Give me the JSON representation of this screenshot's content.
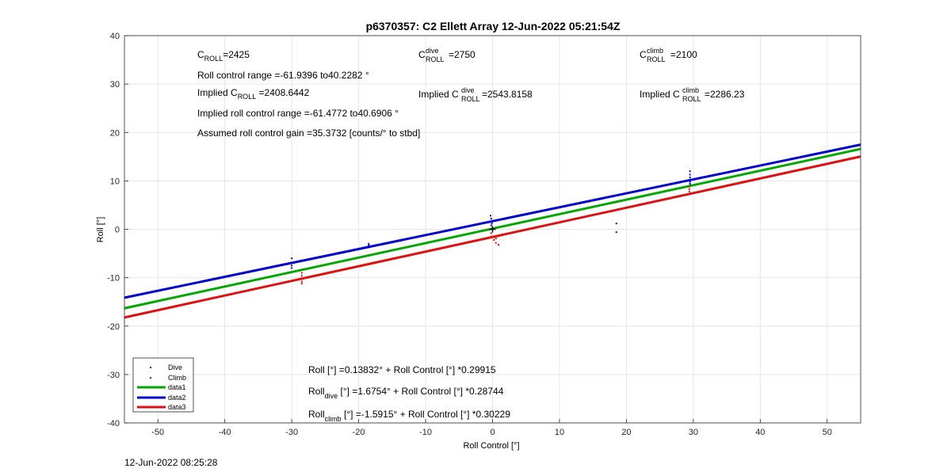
{
  "chart_data": {
    "type": "scatter",
    "title": "p6370357: C2 Ellett Array 12-Jun-2022 05:21:54Z",
    "xlabel": "Roll Control [°]",
    "ylabel": "Roll [°]",
    "xlim": [
      -55,
      55
    ],
    "ylim": [
      -40,
      40
    ],
    "xticks": [
      -50,
      -40,
      -30,
      -20,
      -10,
      0,
      10,
      20,
      30,
      40,
      50
    ],
    "yticks": [
      -40,
      -30,
      -20,
      -10,
      0,
      10,
      20,
      30,
      40
    ],
    "grid": true,
    "legend_position": "bottom-left",
    "series": [
      {
        "name": "Dive",
        "kind": "points",
        "color": "#0000ff",
        "points": [
          [
            -30,
            -6
          ],
          [
            -30,
            -7
          ],
          [
            -30,
            -7.5
          ],
          [
            -30,
            -8
          ],
          [
            -18.5,
            -3
          ],
          [
            -18.5,
            -3.3
          ],
          [
            -0.3,
            2.8
          ],
          [
            -0.2,
            2.2
          ],
          [
            -0.3,
            1.6
          ],
          [
            -0.1,
            1.2
          ],
          [
            -0.2,
            0.8
          ],
          [
            18.5,
            1.2
          ],
          [
            18.5,
            -0.6
          ],
          [
            29.5,
            12
          ],
          [
            29.5,
            11.3
          ],
          [
            29.5,
            10.7
          ],
          [
            29.5,
            10.2
          ],
          [
            29.5,
            9.8
          ],
          [
            29.5,
            9.4
          ]
        ]
      },
      {
        "name": "Climb",
        "kind": "points",
        "color": "#ff0000",
        "points": [
          [
            -28.5,
            -9
          ],
          [
            -28.5,
            -9.6
          ],
          [
            -28.5,
            -10.2
          ],
          [
            -28.5,
            -10.8
          ],
          [
            -28.5,
            -11.2
          ],
          [
            -0.2,
            -0.8
          ],
          [
            -0.2,
            -1.5
          ],
          [
            0.2,
            -2.2
          ],
          [
            0.5,
            -2.8
          ],
          [
            0.5,
            -1.9
          ],
          [
            0.8,
            -1.4
          ],
          [
            0.9,
            -3.2
          ],
          [
            29.4,
            7.8
          ],
          [
            29.4,
            8.3
          ],
          [
            29.4,
            8.8
          ]
        ]
      },
      {
        "name": "data1",
        "kind": "line",
        "color": "#00a800",
        "intercept": 0.13832,
        "slope": 0.29915
      },
      {
        "name": "data2",
        "kind": "line",
        "color": "#0000cc",
        "intercept": 1.6754,
        "slope": 0.28744
      },
      {
        "name": "data3",
        "kind": "line",
        "color": "#dd1111",
        "intercept": -1.5915,
        "slope": 0.30229
      }
    ],
    "cross_marker": [
      0,
      0
    ],
    "annotations": {
      "c_roll_main": "C",
      "c_roll_sub": "ROLL",
      "c_roll_val": "=2425",
      "c_dive_main": "C",
      "c_dive_sup": "dive",
      "c_dive_sub": "ROLL",
      "c_dive_val": "=2750",
      "c_climb_main": "C",
      "c_climb_sup": "climb",
      "c_climb_sub": "ROLL",
      "c_climb_val": "=2100",
      "roll_range": "Roll control range =-61.9396 to40.2282 °",
      "implied_main": "Implied C",
      "implied_sub": "ROLL",
      "implied_val": " =2408.6442",
      "implied_dive_main": "Implied C",
      "implied_dive_sup": "dive",
      "implied_dive_sub": "ROLL",
      "implied_dive_val": " =2543.8158",
      "implied_climb_main": "Implied C",
      "implied_climb_sup": "climb",
      "implied_climb_sub": "ROLL",
      "implied_climb_val": " =2286.23",
      "implied_range": "Implied roll control range =-61.4772 to40.6906 °",
      "gain": "Assumed roll control gain =35.3732 [counts/° to stbd]",
      "fit_all": "Roll [°] =0.13832° + Roll Control [°] *0.29915",
      "fit_dive_main": "Roll",
      "fit_dive_sub": "dive",
      "fit_dive_rest": " [°] =1.6754° + Roll Control [°] *0.28744",
      "fit_climb_main": "Roll",
      "fit_climb_sub": "climb",
      "fit_climb_rest": " [°] =-1.5915° + Roll Control [°] *0.30229"
    }
  },
  "timestamp": "12-Jun-2022 08:25:28"
}
